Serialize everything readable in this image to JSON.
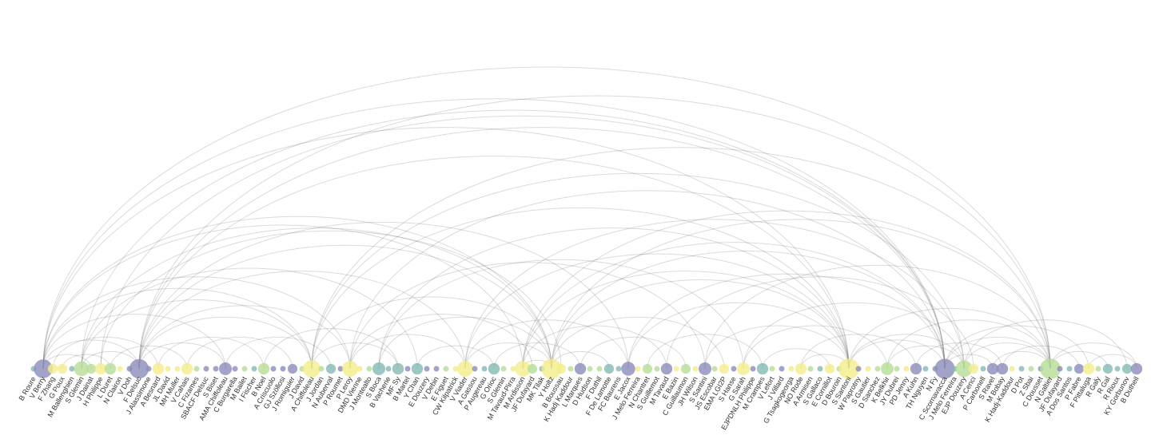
{
  "nodes": [
    {
      "label": "B Roure",
      "color": "#84b9b3"
    },
    {
      "label": "V Berry",
      "color": "#8c8cbb"
    },
    {
      "label": "F Zhang",
      "color": "#f2ee8a"
    },
    {
      "label": "G Poux",
      "color": "#f2ee8a"
    },
    {
      "label": "M Ballenghien",
      "color": "#84b9b3"
    },
    {
      "label": "S Glemin",
      "color": "#b6dd96"
    },
    {
      "label": "J Dainat",
      "color": "#b6dd96"
    },
    {
      "label": "H Philippe",
      "color": "#f2ee8a"
    },
    {
      "label": "L Duret",
      "color": "#b6dd96"
    },
    {
      "label": "N Clairon",
      "color": "#f2ee8a"
    },
    {
      "label": "V Doh",
      "color": "#8c8cbb"
    },
    {
      "label": "F Delsuc",
      "color": "#8c8cbb"
    },
    {
      "label": "J Alassimone",
      "color": "#8c8cbb"
    },
    {
      "label": "A Besnard",
      "color": "#f2ee8a"
    },
    {
      "label": "JL David",
      "color": "#f2ee8a"
    },
    {
      "label": "MH Muller",
      "color": "#f2ee8a"
    },
    {
      "label": "V Cahais",
      "color": "#f2ee8a"
    },
    {
      "label": "C Fizames",
      "color": "#b6dd96"
    },
    {
      "label": "SBACF Delsuc",
      "color": "#8c8cbb"
    },
    {
      "label": "S Biset",
      "color": "#8c8cbb"
    },
    {
      "label": "AMA Chiffoleau",
      "color": "#8c8cbb"
    },
    {
      "label": "C Burgarella",
      "color": "#8c8cbb"
    },
    {
      "label": "M Bailet",
      "color": "#b6dd96"
    },
    {
      "label": "I Fischer",
      "color": "#84b9b3"
    },
    {
      "label": "B Noel",
      "color": "#b6dd96"
    },
    {
      "label": "A Criscuolo",
      "color": "#8c8cbb"
    },
    {
      "label": "GJ Szöllosi",
      "color": "#8c8cbb"
    },
    {
      "label": "J Romiguier",
      "color": "#8c8cbb"
    },
    {
      "label": "J David",
      "color": "#b6dd96"
    },
    {
      "label": "A Chiffoleau",
      "color": "#f2ee8a"
    },
    {
      "label": "J Jordan",
      "color": "#b6dd96"
    },
    {
      "label": "N Auberval",
      "color": "#84b9b3"
    },
    {
      "label": "P Roumet",
      "color": "#8c8cbb"
    },
    {
      "label": "P Leroy",
      "color": "#f2ee8a"
    },
    {
      "label": "DMD Vienne",
      "color": "#f2ee8a"
    },
    {
      "label": "J Montealto",
      "color": "#b6dd96"
    },
    {
      "label": "S Boca",
      "color": "#84b9b3"
    },
    {
      "label": "B Vacherie",
      "color": "#84b9b3"
    },
    {
      "label": "MF Sy",
      "color": "#84b9b3"
    },
    {
      "label": "B Martel",
      "color": "#8c8cbb"
    },
    {
      "label": "Y Chan",
      "color": "#84b9b3"
    },
    {
      "label": "E Douzery",
      "color": "#8c8cbb"
    },
    {
      "label": "V Debin",
      "color": "#8c8cbb"
    },
    {
      "label": "E Figuet",
      "color": "#b6dd96"
    },
    {
      "label": "CW Kilpatrick",
      "color": "#f2ee8a"
    },
    {
      "label": "V Viader",
      "color": "#f2ee8a"
    },
    {
      "label": "A Gassou",
      "color": "#8c8cbb"
    },
    {
      "label": "P Augereau",
      "color": "#84b9b3"
    },
    {
      "label": "G Orioc",
      "color": "#84b9b3"
    },
    {
      "label": "S Glemin",
      "color": "#b6dd96"
    },
    {
      "label": "M Tavaud-Pirra",
      "color": "#f2ee8a"
    },
    {
      "label": "M Ardisson",
      "color": "#f2ee8a"
    },
    {
      "label": "JF Dufayard",
      "color": "#b6dd96"
    },
    {
      "label": "MK Tilak",
      "color": "#84b9b3"
    },
    {
      "label": "Y Holtz",
      "color": "#f2ee8a"
    },
    {
      "label": "B Boussau",
      "color": "#f2ee8a"
    },
    {
      "label": "K Hadj Kaddour",
      "color": "#b6dd96"
    },
    {
      "label": "L Marques",
      "color": "#8c8cbb"
    },
    {
      "label": "D Hudson",
      "color": "#b6dd96"
    },
    {
      "label": "F Duthil",
      "color": "#b6dd96"
    },
    {
      "label": "F De Lamotte",
      "color": "#84b9b3"
    },
    {
      "label": "FC Baurens",
      "color": "#84b9b3"
    },
    {
      "label": "E Jacox",
      "color": "#8c8cbb"
    },
    {
      "label": "J Melo Ferreira",
      "color": "#f2ee8a"
    },
    {
      "label": "N Chantret",
      "color": "#b6dd96"
    },
    {
      "label": "S Guillemot",
      "color": "#b6dd96"
    },
    {
      "label": "M Tavaud",
      "color": "#8c8cbb"
    },
    {
      "label": "E Bazin",
      "color": "#f2ee8a"
    },
    {
      "label": "C Guillaumon",
      "color": "#b6dd96"
    },
    {
      "label": "JH Wilson",
      "color": "#f2ee8a"
    },
    {
      "label": "S Santini",
      "color": "#8c8cbb"
    },
    {
      "label": "JS Escobar",
      "color": "#b6dd96"
    },
    {
      "label": "EMA LGI2P",
      "color": "#f2ee8a"
    },
    {
      "label": "S Hanse",
      "color": "#8c8cbb"
    },
    {
      "label": "G Sarah",
      "color": "#f2ee8a"
    },
    {
      "label": "EJPDNLH Philippe",
      "color": "#8c8cbb"
    },
    {
      "label": "M Crampes",
      "color": "#84b9b3"
    },
    {
      "label": "V Lefort",
      "color": "#b6dd96"
    },
    {
      "label": "J Villard",
      "color": "#8c8cbb"
    },
    {
      "label": "G Tsagkogeorga",
      "color": "#f2ee8a"
    },
    {
      "label": "NO Rode",
      "color": "#f2ee8a"
    },
    {
      "label": "A Armisen",
      "color": "#b6dd96"
    },
    {
      "label": "S Gallaco",
      "color": "#84b9b3"
    },
    {
      "label": "E Cornillot",
      "color": "#f2ee8a"
    },
    {
      "label": "D Bouroin",
      "color": "#b6dd96"
    },
    {
      "label": "S Santoni",
      "color": "#f2ee8a"
    },
    {
      "label": "W Paprotny",
      "color": "#8c8cbb"
    },
    {
      "label": "S Gautier",
      "color": "#f2ee8a"
    },
    {
      "label": "D Sanchez",
      "color": "#b6dd96"
    },
    {
      "label": "K Belkhir",
      "color": "#b6dd96"
    },
    {
      "label": "JY Dubrei",
      "color": "#b6dd96"
    },
    {
      "label": "PD Jenny",
      "color": "#f2ee8a"
    },
    {
      "label": "A Kuhn",
      "color": "#8c8cbb"
    },
    {
      "label": "TH Nguyen",
      "color": "#84b9b3"
    },
    {
      "label": "N Fy",
      "color": "#8c8cbb"
    },
    {
      "label": "C Scornavacca",
      "color": "#8c8cbb"
    },
    {
      "label": "J Melo Ferreira",
      "color": "#84b9b3"
    },
    {
      "label": "EJP Douzery",
      "color": "#b6dd96"
    },
    {
      "label": "A Cenci",
      "color": "#f2ee8a"
    },
    {
      "label": "P Carbonell",
      "color": "#84b9b3"
    },
    {
      "label": "S Ravel",
      "color": "#8c8cbb"
    },
    {
      "label": "M Bobay",
      "color": "#8c8cbb"
    },
    {
      "label": "K Hadj-Kaddour",
      "color": "#f2ee8a"
    },
    {
      "label": "D Pot",
      "color": "#84b9b3"
    },
    {
      "label": "Z Sbai",
      "color": "#b6dd96"
    },
    {
      "label": "C Dousset",
      "color": "#8c8cbb"
    },
    {
      "label": "N Galtier",
      "color": "#b6dd96"
    },
    {
      "label": "JF Dufayard",
      "color": "#8c8cbb"
    },
    {
      "label": "A Dos Santos",
      "color": "#84b9b3"
    },
    {
      "label": "P Fabre",
      "color": "#8c8cbb"
    },
    {
      "label": "F Pittaluga",
      "color": "#f2ee8a"
    },
    {
      "label": "R Galy",
      "color": "#b6dd96"
    },
    {
      "label": "R Gal",
      "color": "#84b9b3"
    },
    {
      "label": "R Rioux",
      "color": "#84b9b3"
    },
    {
      "label": "KY Gorbunov",
      "color": "#84b9b3"
    },
    {
      "label": "B Dutheil",
      "color": "#8c8cbb"
    }
  ],
  "edges": [
    [
      1,
      11
    ],
    [
      1,
      29
    ],
    [
      1,
      54
    ],
    [
      1,
      85
    ],
    [
      1,
      95
    ],
    [
      1,
      106
    ],
    [
      1,
      51
    ],
    [
      1,
      33
    ],
    [
      1,
      6
    ],
    [
      1,
      20
    ],
    [
      5,
      11
    ],
    [
      5,
      54
    ],
    [
      5,
      95
    ],
    [
      5,
      29
    ],
    [
      5,
      40
    ],
    [
      7,
      55
    ],
    [
      7,
      95
    ],
    [
      11,
      29
    ],
    [
      11,
      54
    ],
    [
      11,
      85
    ],
    [
      11,
      95
    ],
    [
      11,
      106
    ],
    [
      11,
      33
    ],
    [
      11,
      45
    ],
    [
      11,
      62
    ],
    [
      11,
      20
    ],
    [
      29,
      54
    ],
    [
      29,
      97
    ],
    [
      29,
      106
    ],
    [
      29,
      38
    ],
    [
      29,
      85
    ],
    [
      33,
      52
    ],
    [
      33,
      95
    ],
    [
      33,
      70
    ],
    [
      33,
      45
    ],
    [
      36,
      54
    ],
    [
      36,
      85
    ],
    [
      36,
      74
    ],
    [
      45,
      54
    ],
    [
      45,
      85
    ],
    [
      45,
      97
    ],
    [
      45,
      62
    ],
    [
      51,
      54
    ],
    [
      51,
      95
    ],
    [
      51,
      106
    ],
    [
      51,
      85
    ],
    [
      51,
      66
    ],
    [
      54,
      95
    ],
    [
      54,
      106
    ],
    [
      54,
      85
    ],
    [
      54,
      72
    ],
    [
      54,
      60
    ],
    [
      62,
      85
    ],
    [
      62,
      95
    ],
    [
      66,
      98
    ],
    [
      70,
      85
    ],
    [
      70,
      106
    ],
    [
      74,
      97
    ],
    [
      74,
      89
    ],
    [
      85,
      95
    ],
    [
      85,
      106
    ],
    [
      85,
      97
    ],
    [
      85,
      80
    ],
    [
      89,
      97
    ],
    [
      89,
      106
    ],
    [
      95,
      106
    ],
    [
      95,
      110
    ],
    [
      95,
      100
    ],
    [
      97,
      106
    ],
    [
      97,
      114
    ],
    [
      100,
      106
    ],
    [
      106,
      115
    ],
    [
      106,
      112
    ],
    [
      2,
      13
    ],
    [
      3,
      8
    ],
    [
      8,
      16
    ],
    [
      13,
      24
    ],
    [
      16,
      27
    ],
    [
      20,
      31
    ],
    [
      24,
      38
    ],
    [
      40,
      48
    ],
    [
      48,
      57
    ],
    [
      57,
      68
    ],
    [
      64,
      76
    ],
    [
      76,
      83
    ],
    [
      80,
      92
    ],
    [
      92,
      101
    ],
    [
      101,
      109
    ],
    [
      110,
      115
    ]
  ]
}
